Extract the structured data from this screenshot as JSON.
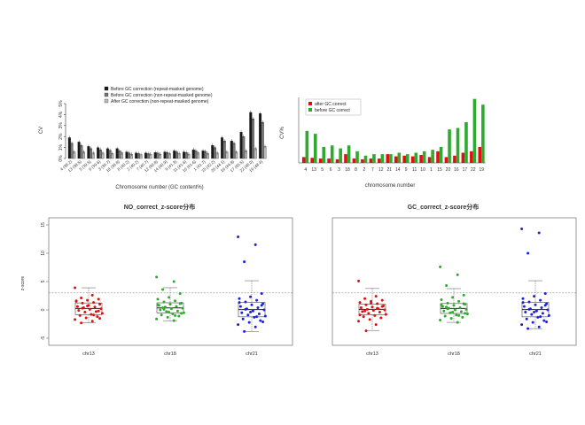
{
  "colors": {
    "black": "#1a1a1a",
    "grey": "#777777",
    "light_grey": "#bbbbbb",
    "red": "#e01010",
    "green": "#2eaa2e",
    "blue": "#1a22e0",
    "dashed": "#888888"
  },
  "chart_data": [
    {
      "type": "bar",
      "xlabel": "Chromosome number (GC content%)",
      "ylabel": "CV",
      "ylim": [
        0,
        5
      ],
      "y_ticks": [
        "0%",
        "1%",
        "2%",
        "3%",
        "4%",
        "5%"
      ],
      "categories": [
        "4 (38.2)",
        "13 (38.5)",
        "5 (39.5)",
        "6 (39.6)",
        "3 (39.7)",
        "18 (39.8)",
        "8 (40.2)",
        "2 (40.2)",
        "7 (40.7)",
        "12 (40.8)",
        "14 (40.9)",
        "9 (41.3)",
        "11 (41.6)",
        "10 (41.6)",
        "1 (41.7)",
        "15 (42.2)",
        "20 (44.1)",
        "16 (44.8)",
        "17 (45.5)",
        "22 (48.0)",
        "19 (48.4)"
      ],
      "legend_position": "top-left",
      "series": [
        {
          "name": "Before GC correction (repeat-masked genome)",
          "values": [
            1.9,
            1.5,
            1.1,
            1.0,
            0.9,
            0.9,
            0.6,
            0.5,
            0.5,
            0.55,
            0.6,
            0.7,
            0.6,
            0.8,
            0.7,
            1.2,
            1.9,
            1.6,
            2.4,
            4.2,
            4.1
          ]
        },
        {
          "name": "Before GC correction (non-repeat-masked genome)",
          "values": [
            1.4,
            1.2,
            0.9,
            0.8,
            0.75,
            0.7,
            0.5,
            0.45,
            0.45,
            0.5,
            0.55,
            0.6,
            0.55,
            0.7,
            0.65,
            1.0,
            1.6,
            1.4,
            2.0,
            3.6,
            3.3
          ]
        },
        {
          "name": "After GC correction (non-repeat-masked genome)",
          "values": [
            0.6,
            0.6,
            0.5,
            0.5,
            0.45,
            0.5,
            0.4,
            0.35,
            0.4,
            0.4,
            0.45,
            0.45,
            0.4,
            0.5,
            0.45,
            0.5,
            0.6,
            0.6,
            0.7,
            0.9,
            1.1
          ]
        }
      ]
    },
    {
      "type": "bar",
      "xlabel": "chromosome number",
      "ylabel": "CV%",
      "categories": [
        "4",
        "13",
        "5",
        "6",
        "3",
        "18",
        "8",
        "2",
        "7",
        "12",
        "21",
        "14",
        "9",
        "11",
        "10",
        "1",
        "15",
        "20",
        "16",
        "17",
        "22",
        "19"
      ],
      "legend_position": "top-left",
      "series": [
        {
          "name": "after GC correct",
          "values": [
            0.4,
            0.35,
            0.3,
            0.3,
            0.25,
            0.6,
            0.3,
            0.25,
            0.3,
            0.3,
            0.6,
            0.45,
            0.5,
            0.45,
            0.55,
            0.4,
            0.8,
            0.4,
            0.5,
            0.7,
            0.8,
            1.1
          ]
        },
        {
          "name": "before GC correct",
          "values": [
            2.2,
            2.0,
            1.1,
            1.2,
            1.0,
            1.2,
            0.8,
            0.5,
            0.6,
            0.6,
            0.6,
            0.7,
            0.6,
            0.7,
            0.8,
            0.9,
            1.1,
            2.3,
            2.4,
            2.8,
            4.4,
            4.0
          ]
        }
      ]
    },
    {
      "type": "scatter",
      "title": "NO_correct_z-score分布",
      "ylabel": "z-score",
      "ylim": [
        -5,
        15
      ],
      "y_ticks": [
        "-5",
        "0",
        "5",
        "10",
        "15"
      ],
      "threshold": 3,
      "categories": [
        "chr13",
        "chr18",
        "chr21"
      ],
      "series": [
        {
          "category": "chr13",
          "color": "red",
          "values": [
            3.9,
            2.6,
            2.1,
            1.9,
            1.7,
            1.5,
            1.3,
            1.2,
            1.0,
            0.8,
            0.6,
            0.5,
            0.4,
            0.2,
            0.1,
            -0.1,
            -0.3,
            -0.4,
            -0.6,
            -0.8,
            -1.0,
            -1.2,
            -1.4,
            -1.7,
            -2.0,
            -2.3,
            -0.2,
            0.7,
            1.6,
            -0.9,
            0.3,
            -1.5
          ]
        },
        {
          "category": "chr18",
          "color": "green",
          "values": [
            5.8,
            5.0,
            3.6,
            2.9,
            2.2,
            1.9,
            1.6,
            1.4,
            1.2,
            1.0,
            0.8,
            0.6,
            0.5,
            0.3,
            0.2,
            0.0,
            -0.2,
            -0.3,
            -0.5,
            -0.7,
            -0.9,
            -1.1,
            -1.3,
            -1.6,
            -1.9,
            0.4,
            1.1,
            -0.4,
            0.9,
            -1.0,
            0.1,
            -0.6
          ]
        },
        {
          "category": "chr21",
          "color": "blue",
          "values": [
            12.9,
            11.5,
            8.5,
            2.9,
            2.3,
            2.0,
            1.7,
            1.4,
            1.1,
            0.9,
            0.6,
            0.4,
            0.2,
            0.0,
            -0.2,
            -0.5,
            -0.7,
            -0.9,
            -1.1,
            -1.3,
            -1.6,
            -1.9,
            -2.2,
            -2.6,
            -3.0,
            -3.8,
            0.8,
            -0.4,
            1.3,
            -1.2,
            0.1,
            -2.1
          ]
        }
      ]
    },
    {
      "type": "scatter",
      "title": "GC_correct_z-score分布",
      "ylim": [
        -5,
        15
      ],
      "threshold": 3,
      "categories": [
        "chr13",
        "chr18",
        "chr21"
      ],
      "series": [
        {
          "category": "chr13",
          "color": "red",
          "values": [
            5.1,
            2.4,
            2.0,
            1.7,
            1.5,
            1.3,
            1.1,
            0.9,
            0.7,
            0.5,
            0.4,
            0.2,
            0.1,
            0.0,
            -0.1,
            -0.3,
            -0.4,
            -0.6,
            -0.8,
            -1.0,
            -1.2,
            -1.4,
            -1.7,
            -2.0,
            -2.6,
            -0.2,
            0.6,
            1.2,
            -0.9,
            0.3,
            -3.7
          ]
        },
        {
          "category": "chr18",
          "color": "green",
          "values": [
            7.6,
            6.2,
            4.3,
            2.6,
            2.2,
            1.8,
            1.5,
            1.2,
            1.0,
            0.8,
            0.6,
            0.4,
            0.3,
            0.1,
            0.0,
            -0.2,
            -0.3,
            -0.5,
            -0.7,
            -0.9,
            -1.1,
            -1.3,
            -1.5,
            -1.8,
            -2.2,
            0.5,
            1.1,
            -0.4,
            0.9,
            -1.0,
            0.2,
            -0.6
          ]
        },
        {
          "category": "chr21",
          "color": "blue",
          "values": [
            14.3,
            13.6,
            10.0,
            2.9,
            2.4,
            2.0,
            1.7,
            1.4,
            1.1,
            0.9,
            0.6,
            0.4,
            0.2,
            0.0,
            -0.2,
            -0.4,
            -0.6,
            -0.8,
            -1.0,
            -1.3,
            -1.6,
            -1.9,
            -2.2,
            -2.6,
            -3.0,
            -3.3,
            0.8,
            -0.4,
            1.3,
            -1.2,
            0.1,
            -2.1
          ]
        }
      ]
    }
  ]
}
